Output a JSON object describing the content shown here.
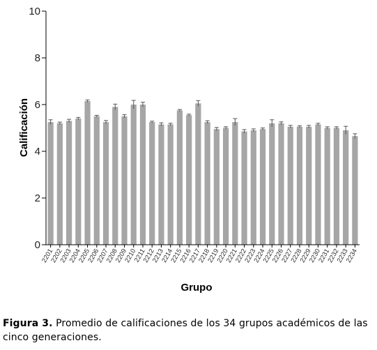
{
  "caption": {
    "label": "Figura 3.",
    "text": " Promedio de calificaciones de los 34 grupos académicos de las cinco generaciones."
  },
  "chart_data": {
    "type": "bar",
    "title": "",
    "xlabel": "Grupo",
    "ylabel": "Calificación",
    "ylim": [
      0,
      10
    ],
    "yticks": [
      0,
      2,
      4,
      6,
      8,
      10
    ],
    "grid": false,
    "error_bars": true,
    "bar_color": "#a6a6a6",
    "categories": [
      "2201",
      "2202",
      "2203",
      "2204",
      "2205",
      "2206",
      "2207",
      "2208",
      "2209",
      "2210",
      "2211",
      "2212",
      "2213",
      "2214",
      "2215",
      "2216",
      "2217",
      "2218",
      "2219",
      "2220",
      "2221",
      "2222",
      "2223",
      "2224",
      "2225",
      "2226",
      "2227",
      "2228",
      "2229",
      "2230",
      "2231",
      "2232",
      "2233",
      "2234"
    ],
    "values": [
      5.25,
      5.2,
      5.3,
      5.4,
      6.15,
      5.5,
      5.25,
      5.9,
      5.5,
      6.0,
      6.0,
      5.25,
      5.15,
      5.15,
      5.75,
      5.55,
      6.05,
      5.25,
      4.95,
      5.0,
      5.25,
      4.85,
      4.9,
      4.95,
      5.2,
      5.2,
      5.05,
      5.05,
      5.05,
      5.15,
      5.0,
      5.0,
      4.9,
      4.65
    ],
    "errors": [
      0.1,
      0.05,
      0.07,
      0.05,
      0.05,
      0.04,
      0.07,
      0.12,
      0.07,
      0.18,
      0.1,
      0.04,
      0.07,
      0.05,
      0.04,
      0.04,
      0.12,
      0.06,
      0.07,
      0.05,
      0.15,
      0.08,
      0.06,
      0.05,
      0.15,
      0.06,
      0.06,
      0.04,
      0.06,
      0.05,
      0.05,
      0.05,
      0.17,
      0.1
    ]
  }
}
